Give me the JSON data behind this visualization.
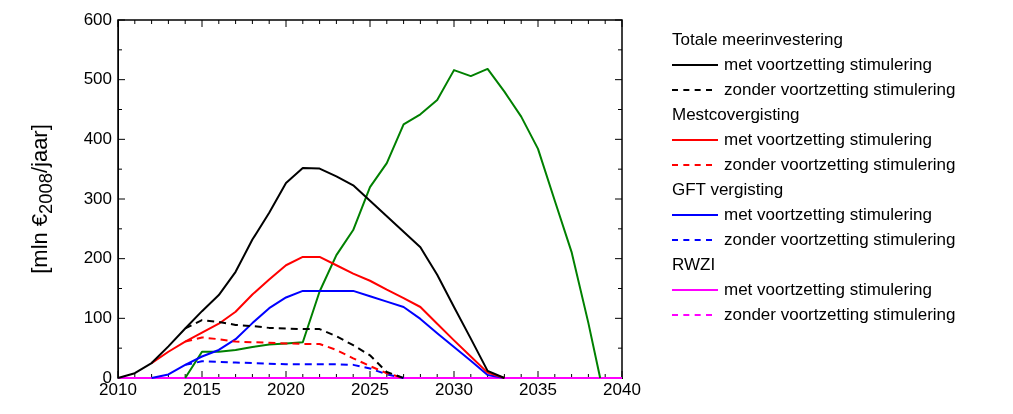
{
  "chart_data": {
    "type": "line",
    "ylabel": "[mln €$_{2008}$/jaar]",
    "x": [
      2010,
      2011,
      2012,
      2013,
      2014,
      2015,
      2016,
      2017,
      2018,
      2019,
      2020,
      2021,
      2022,
      2023,
      2024,
      2025,
      2026,
      2027,
      2028,
      2029,
      2030,
      2031,
      2032,
      2033,
      2034,
      2035,
      2036,
      2037,
      2038,
      2039,
      2040
    ],
    "xlim": [
      2010,
      2040
    ],
    "ylim": [
      0,
      600
    ],
    "xticks": [
      2010,
      {
        "value": 2011,
        "label": null
      },
      {
        "value": 2012,
        "label": null
      },
      {
        "value": 2013,
        "label": null
      },
      {
        "value": 2014,
        "label": null
      },
      2015,
      {
        "value": 2016,
        "label": null
      },
      {
        "value": 2017,
        "label": null
      },
      {
        "value": 2018,
        "label": null
      },
      {
        "value": 2019,
        "label": null
      },
      2020,
      {
        "value": 2021,
        "label": null
      },
      {
        "value": 2022,
        "label": null
      },
      {
        "value": 2023,
        "label": null
      },
      {
        "value": 2024,
        "label": null
      },
      2025,
      {
        "value": 2026,
        "label": null
      },
      {
        "value": 2027,
        "label": null
      },
      {
        "value": 2028,
        "label": null
      },
      {
        "value": 2029,
        "label": null
      },
      2030,
      {
        "value": 2031,
        "label": null
      },
      {
        "value": 2032,
        "label": null
      },
      {
        "value": 2033,
        "label": null
      },
      {
        "value": 2034,
        "label": null
      },
      2035,
      {
        "value": 2036,
        "label": null
      },
      {
        "value": 2037,
        "label": null
      },
      {
        "value": 2038,
        "label": null
      },
      {
        "value": 2039,
        "label": null
      },
      2040
    ],
    "yticks": [
      0,
      {
        "value": 50,
        "label": null
      },
      100,
      {
        "value": 150,
        "label": null
      },
      200,
      {
        "value": 250,
        "label": null
      },
      300,
      {
        "value": 350,
        "label": null
      },
      400,
      {
        "value": 450,
        "label": null
      },
      500,
      {
        "value": 550,
        "label": null
      },
      600
    ],
    "legend": "right",
    "grid": false,
    "marker": "none",
    "annotations": [
      "Totale meerinvestering",
      "Mestcovergisting",
      "GFT vergisting",
      "RWZI"
    ],
    "series": [
      {
        "name": "met voortzetting stimulering",
        "color": "#000000",
        "line_style": "solid",
        "values": [
          0,
          8,
          25,
          53,
          83,
          112,
          139,
          178,
          232,
          277,
          327,
          352,
          351,
          338,
          323,
          297,
          271,
          245,
          219,
          173,
          119,
          66,
          12,
          0,
          null,
          null,
          null,
          null,
          null,
          null,
          null
        ]
      },
      {
        "name": "zonder voortzetting stimulering",
        "color": "#000000",
        "line_style": "dashed",
        "values": [
          null,
          null,
          null,
          null,
          83,
          97,
          94,
          89,
          87,
          84,
          83,
          82,
          82,
          70,
          55,
          38,
          10,
          0,
          null,
          null,
          null,
          null,
          null,
          null,
          null,
          null,
          null,
          null,
          null,
          null,
          null
        ]
      },
      {
        "name": "met voortzetting stimulering",
        "color": "#ff0000",
        "line_style": "solid",
        "values": [
          null,
          null,
          25,
          44,
          61,
          76,
          91,
          111,
          140,
          165,
          189,
          203,
          203,
          189,
          175,
          163,
          148,
          134,
          119,
          91,
          63,
          36,
          9,
          0,
          null,
          null,
          null,
          null,
          null,
          null,
          null
        ]
      },
      {
        "name": "zonder voortzetting stimulering",
        "color": "#ff0000",
        "line_style": "dashed",
        "values": [
          null,
          null,
          null,
          null,
          61,
          68,
          65,
          61,
          60,
          59,
          58,
          57,
          57,
          47,
          33,
          20,
          8,
          0,
          null,
          null,
          null,
          null,
          null,
          null,
          null,
          null,
          null,
          null,
          null,
          null,
          null
        ]
      },
      {
        "name": "met voortzetting stimulering",
        "color": "#0000ff",
        "line_style": "solid",
        "values": [
          null,
          null,
          0,
          6,
          22,
          36,
          47,
          65,
          92,
          117,
          135,
          146,
          146,
          146,
          146,
          137,
          128,
          119,
          99,
          75,
          52,
          29,
          5,
          0,
          null,
          null,
          null,
          null,
          null,
          null,
          null
        ]
      },
      {
        "name": "zonder voortzetting stimulering",
        "color": "#0000ff",
        "line_style": "dashed",
        "values": [
          null,
          null,
          null,
          null,
          22,
          28,
          27,
          26,
          25,
          24,
          23,
          23,
          23,
          23,
          22,
          16,
          6,
          0,
          null,
          null,
          null,
          null,
          null,
          null,
          null,
          null,
          null,
          null,
          null,
          null,
          null
        ]
      },
      {
        "color": "#008000",
        "line_style": "solid",
        "x": [
          2014,
          2015,
          2016,
          2017,
          2018,
          2019,
          2020,
          2021,
          2022,
          2023,
          2024,
          2025,
          2026,
          2027,
          2028,
          2029,
          2030,
          2031,
          2032,
          2033,
          2034,
          2035,
          2036,
          2037,
          2038,
          2038.7
        ],
        "values": [
          0,
          44,
          44,
          47,
          52,
          56,
          58,
          60,
          145,
          206,
          248,
          320,
          360,
          425,
          442,
          466,
          516,
          506,
          518,
          480,
          438,
          384,
          297,
          211,
          92,
          0
        ]
      },
      {
        "name": "met voortzetting stimulering",
        "color": "#ff00ff",
        "line_style": "solid",
        "values": [
          0,
          0,
          0,
          0,
          0,
          0,
          0,
          0,
          0,
          0,
          0,
          0,
          0,
          0,
          0,
          0,
          0,
          0,
          0,
          0,
          0,
          0,
          0,
          0,
          0,
          0,
          0,
          0,
          0,
          0,
          0
        ]
      },
      {
        "name": "zonder voortzetting stimulering",
        "color": "#ff00ff",
        "line_style": "dashed",
        "values": [
          null,
          null,
          null,
          null,
          null,
          null,
          null,
          null,
          null,
          null,
          null,
          null,
          null,
          null,
          null,
          null,
          null,
          null,
          null,
          null,
          null,
          null,
          null,
          null,
          null,
          null,
          null,
          null,
          null,
          null,
          null
        ]
      }
    ]
  }
}
